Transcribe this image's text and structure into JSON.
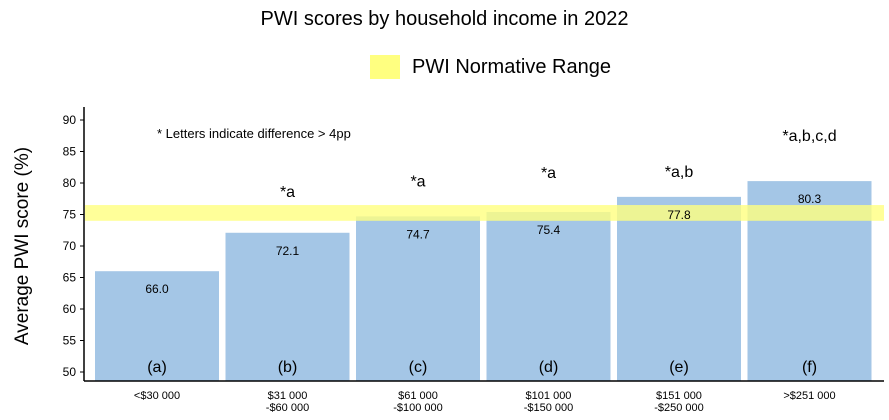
{
  "chart_data": {
    "type": "bar",
    "title": "PWI scores by household income in 2022",
    "ylabel": "Average PWI score (%)",
    "xlabel": "",
    "ylim": [
      48,
      92
    ],
    "yticks": [
      "90",
      "85",
      "80",
      "75",
      "70",
      "65",
      "60",
      "55",
      "50"
    ],
    "categories": [
      {
        "line1": "<$30 000",
        "line2": ""
      },
      {
        "line1": "$31 000",
        "line2": "-$60 000"
      },
      {
        "line1": "$61 000",
        "line2": "-$100 000"
      },
      {
        "line1": "$101 000",
        "line2": "-$150 000"
      },
      {
        "line1": "$151 000",
        "line2": "-$250 000"
      },
      {
        "line1": ">$251 000",
        "line2": ""
      }
    ],
    "values": [
      66.0,
      72.1,
      74.7,
      75.4,
      77.8,
      80.3
    ],
    "value_labels": [
      "66.0",
      "72.1",
      "74.7",
      "75.4",
      "77.8",
      "80.3"
    ],
    "group_letters": [
      "(a)",
      "(b)",
      "(c)",
      "(d)",
      "(e)",
      "(f)"
    ],
    "significance": [
      "",
      "*a",
      "*a",
      "*a",
      "*a,b",
      "*a,b,c,d"
    ],
    "normative_range": [
      74,
      76.5
    ],
    "legend": {
      "label": "PWI Normative Range",
      "position": "top"
    },
    "annotation": "* Letters indicate difference > 4pp",
    "grid": false,
    "colors": {
      "bar": "#a4c6e6",
      "band": "#ffff80"
    }
  }
}
